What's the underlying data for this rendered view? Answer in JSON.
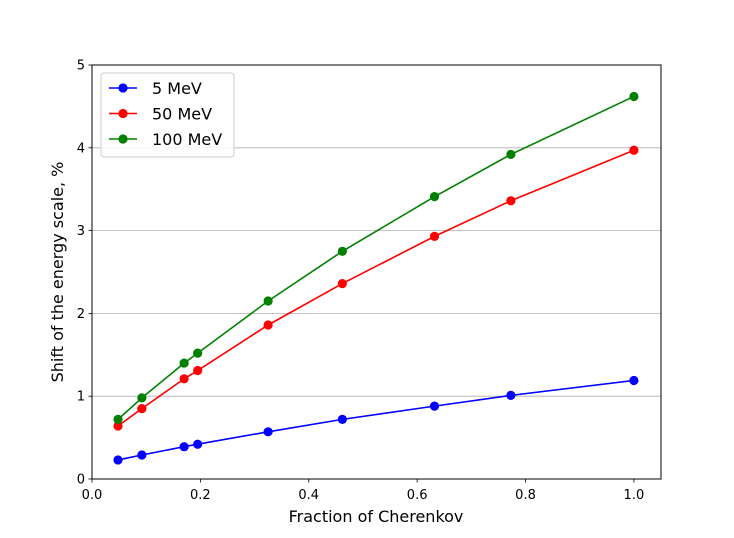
{
  "chart_data": {
    "type": "line",
    "title": "",
    "xlabel": "Fraction of Cherenkov",
    "ylabel": "Shift of the energy scale, %",
    "xlim": [
      0.0,
      1.05
    ],
    "ylim": [
      0,
      5
    ],
    "xticks": [
      0.0,
      0.2,
      0.4,
      0.6,
      0.8,
      1.0
    ],
    "xtick_labels": [
      "0.0",
      "0.2",
      "0.4",
      "0.6",
      "0.8",
      "1.0"
    ],
    "yticks": [
      0,
      1,
      2,
      3,
      4,
      5
    ],
    "ytick_labels": [
      "0",
      "1",
      "2",
      "3",
      "4",
      "5"
    ],
    "grid": "horizontal",
    "legend_position": "top-left",
    "x": [
      0.048,
      0.092,
      0.17,
      0.195,
      0.325,
      0.462,
      0.632,
      0.773,
      1.0
    ],
    "series": [
      {
        "name": "5 MeV",
        "color": "#0000ff",
        "values": [
          0.23,
          0.29,
          0.39,
          0.42,
          0.57,
          0.72,
          0.88,
          1.01,
          1.19
        ]
      },
      {
        "name": "50 MeV",
        "color": "#ff0000",
        "values": [
          0.64,
          0.85,
          1.21,
          1.31,
          1.86,
          2.36,
          2.93,
          3.36,
          3.97
        ]
      },
      {
        "name": "100 MeV",
        "color": "#008000",
        "values": [
          0.72,
          0.98,
          1.4,
          1.52,
          2.15,
          2.75,
          3.41,
          3.92,
          4.62
        ]
      }
    ]
  }
}
